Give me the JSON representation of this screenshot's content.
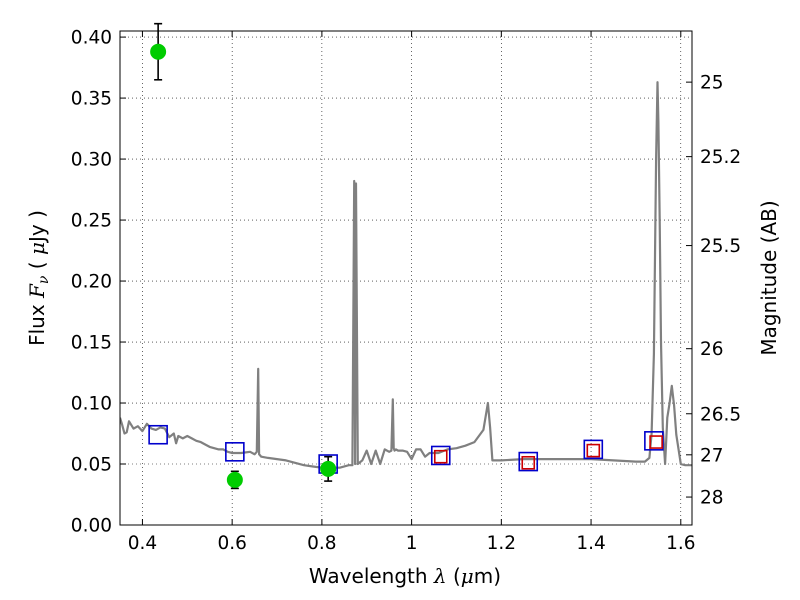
{
  "chart_data": {
    "type": "line",
    "xlabel": "Wavelength  λ (μm)",
    "ylabel": "Flux  F_ν  ( μJy )",
    "y2label": "Magnitude (AB)",
    "xlim": [
      0.35,
      1.625
    ],
    "ylim": [
      0.0,
      0.405
    ],
    "grid": true,
    "x_ticks": [
      0.4,
      0.6,
      0.8,
      1.0,
      1.2,
      1.4,
      1.6
    ],
    "x_tick_labels": [
      "0.4",
      "0.6",
      "0.8",
      "1",
      "1.2",
      "1.4",
      "1.6"
    ],
    "y_ticks": [
      0.0,
      0.05,
      0.1,
      0.15,
      0.2,
      0.25,
      0.3,
      0.35,
      0.4
    ],
    "y_tick_labels": [
      "0.00",
      "0.05",
      "0.10",
      "0.15",
      "0.20",
      "0.25",
      "0.30",
      "0.35",
      "0.40"
    ],
    "mag_ticks": [
      25,
      25.2,
      25.5,
      26,
      26.5,
      27,
      28
    ],
    "mag_tick_labels": [
      "25",
      "25.2",
      "25.5",
      "26",
      "26.5",
      "27",
      "28"
    ],
    "series": [
      {
        "name": "model-spectrum",
        "kind": "line",
        "color": "#808080",
        "x": [
          0.35,
          0.355,
          0.36,
          0.365,
          0.37,
          0.38,
          0.39,
          0.4,
          0.41,
          0.42,
          0.43,
          0.44,
          0.45,
          0.46,
          0.47,
          0.475,
          0.48,
          0.49,
          0.5,
          0.51,
          0.52,
          0.53,
          0.54,
          0.55,
          0.56,
          0.57,
          0.58,
          0.59,
          0.6,
          0.62,
          0.64,
          0.65,
          0.655,
          0.658,
          0.66,
          0.665,
          0.68,
          0.7,
          0.72,
          0.74,
          0.76,
          0.78,
          0.8,
          0.82,
          0.84,
          0.86,
          0.868,
          0.872,
          0.874,
          0.876,
          0.88,
          0.89,
          0.9,
          0.91,
          0.92,
          0.93,
          0.94,
          0.95,
          0.955,
          0.958,
          0.96,
          0.962,
          0.965,
          0.97,
          0.98,
          0.99,
          1.0,
          1.01,
          1.02,
          1.03,
          1.04,
          1.06,
          1.08,
          1.1,
          1.12,
          1.14,
          1.16,
          1.17,
          1.175,
          1.18,
          1.19,
          1.2,
          1.25,
          1.3,
          1.35,
          1.4,
          1.45,
          1.5,
          1.52,
          1.53,
          1.535,
          1.54,
          1.545,
          1.548,
          1.55,
          1.553,
          1.556,
          1.56,
          1.565,
          1.57,
          1.575,
          1.58,
          1.585,
          1.59,
          1.6,
          1.61,
          1.625
        ],
        "y": [
          0.088,
          0.082,
          0.075,
          0.076,
          0.085,
          0.079,
          0.081,
          0.077,
          0.083,
          0.079,
          0.078,
          0.08,
          0.079,
          0.072,
          0.075,
          0.067,
          0.073,
          0.071,
          0.073,
          0.071,
          0.069,
          0.068,
          0.066,
          0.064,
          0.063,
          0.062,
          0.062,
          0.06,
          0.059,
          0.059,
          0.06,
          0.058,
          0.06,
          0.128,
          0.058,
          0.056,
          0.055,
          0.054,
          0.053,
          0.051,
          0.049,
          0.048,
          0.047,
          0.047,
          0.047,
          0.049,
          0.049,
          0.282,
          0.05,
          0.28,
          0.05,
          0.053,
          0.061,
          0.05,
          0.061,
          0.05,
          0.062,
          0.06,
          0.061,
          0.103,
          0.063,
          0.061,
          0.062,
          0.061,
          0.061,
          0.06,
          0.054,
          0.062,
          0.062,
          0.056,
          0.059,
          0.059,
          0.062,
          0.063,
          0.065,
          0.068,
          0.078,
          0.1,
          0.08,
          0.053,
          0.053,
          0.053,
          0.054,
          0.054,
          0.054,
          0.054,
          0.053,
          0.052,
          0.052,
          0.055,
          0.075,
          0.14,
          0.3,
          0.363,
          0.33,
          0.25,
          0.15,
          0.08,
          0.05,
          0.088,
          0.1,
          0.114,
          0.098,
          0.074,
          0.05,
          0.049,
          0.049
        ]
      },
      {
        "name": "observed-photometry",
        "kind": "errorbar-scatter",
        "color": "#00cc00",
        "x": [
          0.435,
          0.606,
          0.814
        ],
        "y": [
          0.388,
          0.037,
          0.046
        ],
        "yerr": [
          0.023,
          0.007,
          0.01
        ]
      },
      {
        "name": "model-photometry-blue",
        "kind": "square-markers",
        "color": "#0000cc",
        "x": [
          0.435,
          0.606,
          0.814,
          1.065,
          1.26,
          1.405,
          1.54
        ],
        "y": [
          0.074,
          0.06,
          0.05,
          0.057,
          0.052,
          0.062,
          0.069
        ]
      },
      {
        "name": "model-photometry-red",
        "kind": "square-markers",
        "color": "#cc0000",
        "x": [
          1.065,
          1.26,
          1.405,
          1.545
        ],
        "y": [
          0.056,
          0.051,
          0.061,
          0.068
        ]
      }
    ]
  }
}
